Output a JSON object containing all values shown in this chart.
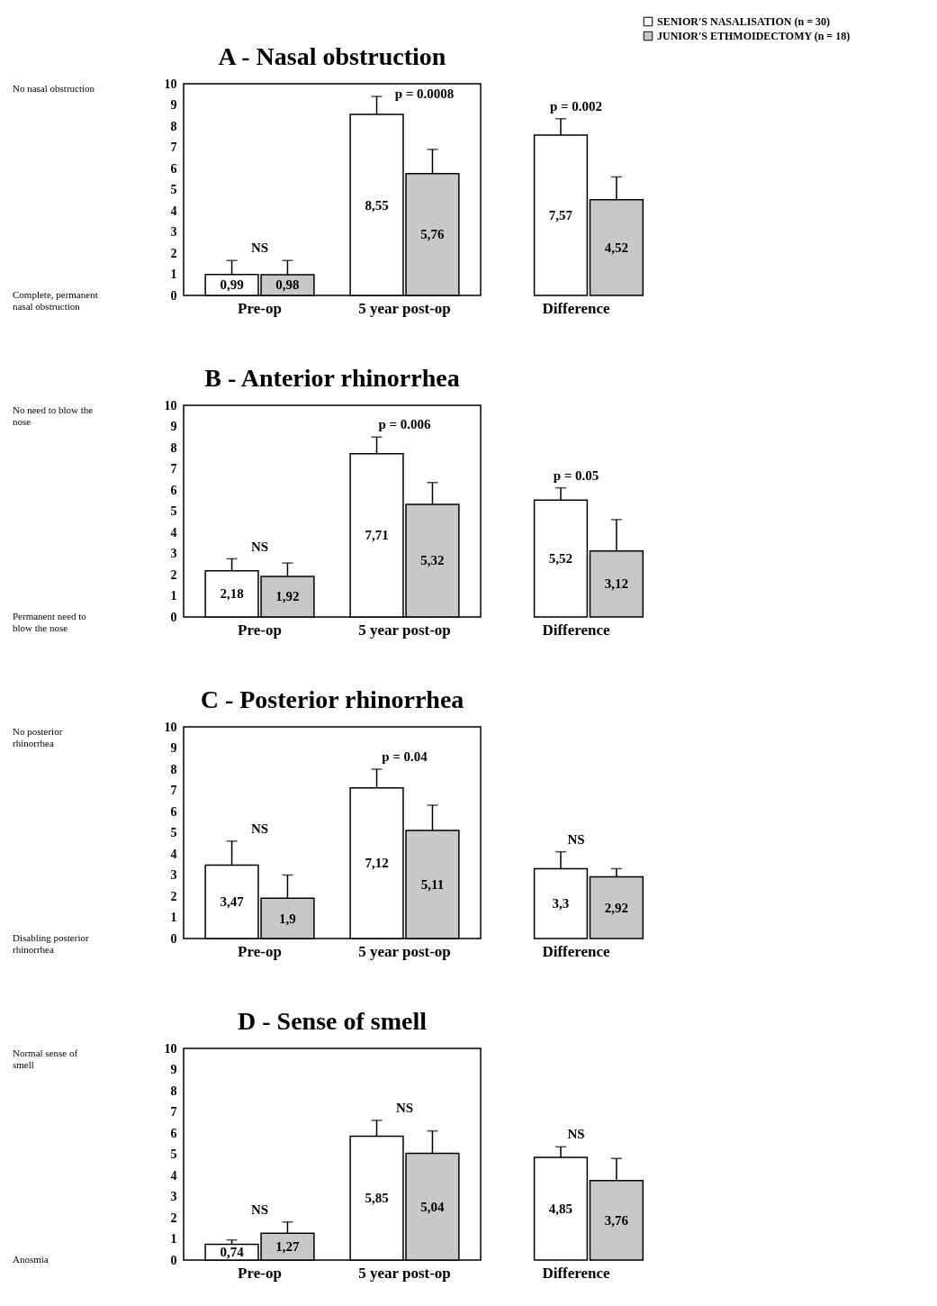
{
  "chart_data": [
    {
      "type": "bar",
      "title": "A - Nasal obstruction",
      "categories": [
        "Pre-op",
        "5 year post-op",
        "Difference"
      ],
      "ylim": [
        0,
        10
      ],
      "yticks": [
        0,
        1,
        2,
        3,
        4,
        5,
        6,
        7,
        8,
        9,
        10
      ],
      "legend": "top right",
      "series": [
        {
          "name": "SENIOR'S NASALISATION (n = 30)",
          "color": "#ffffff",
          "values": [
            0.99,
            8.55,
            7.57
          ],
          "value_labels": [
            "0,99",
            "8,55",
            "7,57"
          ],
          "errors": [
            [
              0.99,
              1.65
            ],
            [
              8.55,
              9.4
            ],
            [
              7.57,
              8.35
            ]
          ]
        },
        {
          "name": "JUNIOR'S ETHMOIDECTOMY (n = 18)",
          "color": "#c8c8c8",
          "values": [
            0.98,
            5.76,
            4.52
          ],
          "value_labels": [
            "0,98",
            "5,76",
            "4,52"
          ],
          "errors": [
            [
              0.98,
              1.65
            ],
            [
              5.76,
              6.9
            ],
            [
              4.52,
              5.6
            ]
          ]
        }
      ],
      "annotations": [
        "No nasal obstruction",
        "Complete, permanent nasal obstruction",
        "NS",
        "p = 0.0008",
        "p = 0.002"
      ]
    },
    {
      "type": "bar",
      "title": "B - Anterior rhinorrhea",
      "categories": [
        "Pre-op",
        "5 year post-op",
        "Difference"
      ],
      "ylim": [
        0,
        10
      ],
      "yticks": [
        0,
        1,
        2,
        3,
        4,
        5,
        6,
        7,
        8,
        9,
        10
      ],
      "series": [
        {
          "name": "SENIOR'S NASALISATION (n = 30)",
          "color": "#ffffff",
          "values": [
            2.18,
            7.71,
            5.52
          ],
          "value_labels": [
            "2,18",
            "7,71",
            "5,52"
          ],
          "errors": [
            [
              2.18,
              2.75
            ],
            [
              7.71,
              8.5
            ],
            [
              5.52,
              6.1
            ]
          ]
        },
        {
          "name": "JUNIOR'S ETHMOIDECTOMY (n = 18)",
          "color": "#c8c8c8",
          "values": [
            1.92,
            5.32,
            3.12
          ],
          "value_labels": [
            "1,92",
            "5,32",
            "3,12"
          ],
          "errors": [
            [
              1.92,
              2.55
            ],
            [
              5.32,
              6.35
            ],
            [
              3.12,
              4.6
            ]
          ]
        }
      ],
      "annotations": [
        "No need to blow the nose",
        "Permanent need to blow the nose",
        "NS",
        "p = 0.006",
        "p = 0.05"
      ]
    },
    {
      "type": "bar",
      "title": "C - Posterior rhinorrhea",
      "categories": [
        "Pre-op",
        "5 year post-op",
        "Difference"
      ],
      "ylim": [
        0,
        10
      ],
      "yticks": [
        0,
        1,
        2,
        3,
        4,
        5,
        6,
        7,
        8,
        9,
        10
      ],
      "series": [
        {
          "name": "SENIOR'S NASALISATION (n = 30)",
          "color": "#ffffff",
          "values": [
            3.47,
            7.12,
            3.3
          ],
          "value_labels": [
            "3,47",
            "7,12",
            "3,3"
          ],
          "errors": [
            [
              3.47,
              4.6
            ],
            [
              7.12,
              8
            ],
            [
              3.3,
              4.1
            ]
          ]
        },
        {
          "name": "JUNIOR'S ETHMOIDECTOMY (n = 18)",
          "color": "#c8c8c8",
          "values": [
            1.9,
            5.11,
            2.92
          ],
          "value_labels": [
            "1,9",
            "5,11",
            "2,92"
          ],
          "errors": [
            [
              1.9,
              3
            ],
            [
              5.11,
              6.3
            ],
            [
              2.92,
              3.3
            ]
          ]
        }
      ],
      "annotations": [
        "No posterior rhinorrhea",
        "Disabling posterior rhinorrhea",
        "NS",
        "p = 0.04",
        "NS"
      ]
    },
    {
      "type": "bar",
      "title": "D - Sense of smell",
      "categories": [
        "Pre-op",
        "5 year post-op",
        "Difference"
      ],
      "ylim": [
        0,
        10
      ],
      "yticks": [
        0,
        1,
        2,
        3,
        4,
        5,
        6,
        7,
        8,
        9,
        10
      ],
      "series": [
        {
          "name": "SENIOR'S NASALISATION (n = 30)",
          "color": "#ffffff",
          "values": [
            0.74,
            5.85,
            4.85
          ],
          "value_labels": [
            "0,74",
            "5,85",
            "4,85"
          ],
          "errors": [
            [
              0.74,
              0.95
            ],
            [
              5.85,
              6.6
            ],
            [
              4.85,
              5.35
            ]
          ]
        },
        {
          "name": "JUNIOR'S ETHMOIDECTOMY (n = 18)",
          "color": "#c8c8c8",
          "values": [
            1.27,
            5.04,
            3.76
          ],
          "value_labels": [
            "1,27",
            "5,04",
            "3,76"
          ],
          "errors": [
            [
              1.27,
              1.8
            ],
            [
              5.04,
              6.1
            ],
            [
              3.76,
              4.8
            ]
          ]
        }
      ],
      "annotations": [
        "Normal sense of smell",
        "Anosmia",
        "NS",
        "NS",
        "NS"
      ]
    }
  ]
}
